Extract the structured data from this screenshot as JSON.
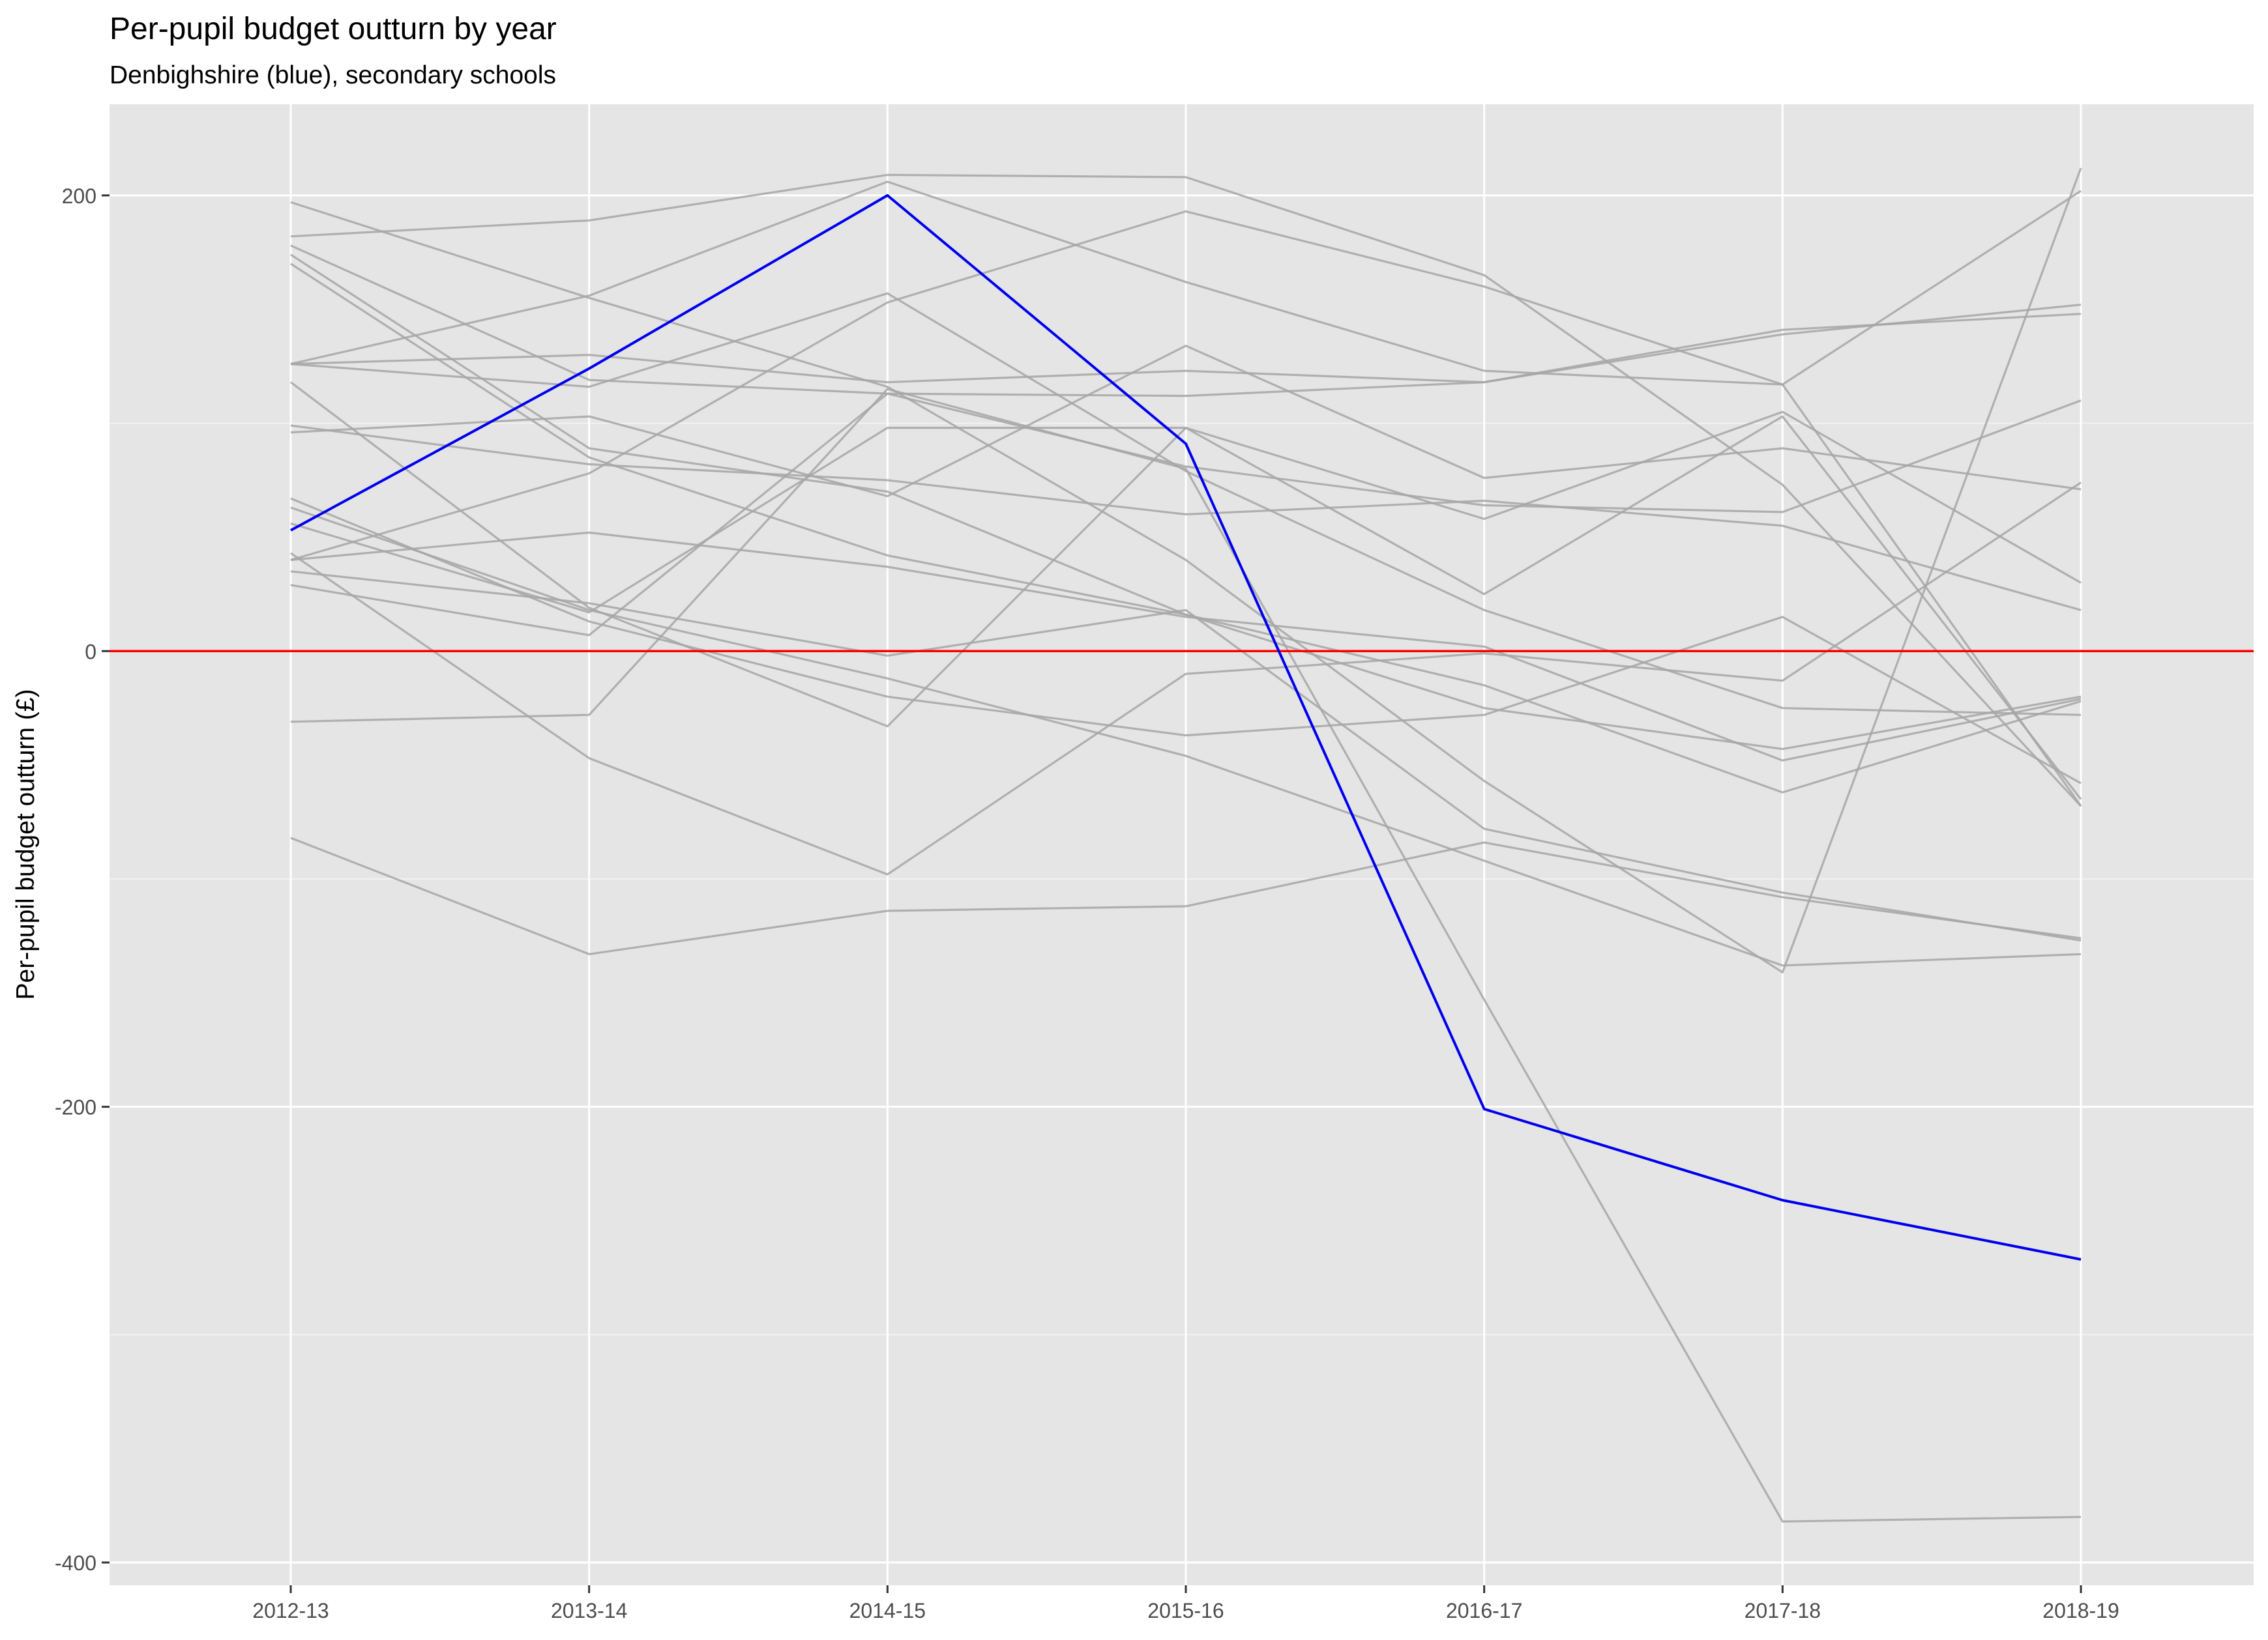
{
  "chart_data": {
    "type": "line",
    "title": "Per-pupil budget outturn by year",
    "subtitle": "Denbighshire (blue), secondary schools",
    "xlabel": "",
    "ylabel": "Per-pupil budget outturn (£)",
    "categories": [
      "2012-13",
      "2013-14",
      "2014-15",
      "2015-16",
      "2016-17",
      "2017-18",
      "2018-19"
    ],
    "ylim": [
      -410,
      240
    ],
    "yticks": [
      -400,
      -200,
      0,
      200
    ],
    "ytick_labels": [
      "-400",
      "-200",
      "0",
      "200"
    ],
    "grid": true,
    "reference_line": {
      "y": 0,
      "color": "#ff0000"
    },
    "highlight_color": "#0000ee",
    "background_color": "#e5e5e5",
    "other_color": "#a6a6a6",
    "highlight": {
      "values": [
        53,
        124,
        200,
        91,
        -201,
        -241,
        -267
      ]
    },
    "series": [
      {
        "values": [
          197,
          155,
          116,
          40,
          -57,
          -141,
          212
        ]
      },
      {
        "values": [
          182,
          189,
          209,
          208,
          165,
          73,
          -68
        ]
      },
      {
        "values": [
          178,
          119,
          113,
          112,
          118,
          139,
          152
        ]
      },
      {
        "values": [
          174,
          89,
          70,
          16,
          -25,
          -43,
          -20
        ]
      },
      {
        "values": [
          170,
          85,
          42,
          16,
          -15,
          -62,
          -22
        ]
      },
      {
        "values": [
          126,
          130,
          118,
          123,
          118,
          141,
          148
        ]
      },
      {
        "values": [
          126,
          156,
          206,
          162,
          123,
          117,
          202
        ]
      },
      {
        "values": [
          126,
          116,
          157,
          79,
          18,
          -25,
          -28
        ]
      },
      {
        "values": [
          118,
          19,
          -33,
          98,
          58,
          105,
          30
        ]
      },
      {
        "values": [
          99,
          82,
          75,
          60,
          66,
          55,
          18
        ]
      },
      {
        "values": [
          96,
          103,
          68,
          134,
          76,
          89,
          71
        ]
      },
      {
        "values": [
          67,
          13,
          -20,
          -37,
          -28,
          15,
          -58
        ]
      },
      {
        "values": [
          63,
          18,
          -12,
          -46,
          -92,
          -138,
          -133
        ]
      },
      {
        "values": [
          56,
          17,
          98,
          98,
          25,
          103,
          -65
        ]
      },
      {
        "values": [
          40,
          78,
          153,
          193,
          160,
          117,
          -68
        ]
      },
      {
        "values": [
          40,
          52,
          37,
          15,
          2,
          -48,
          -21
        ]
      },
      {
        "values": [
          35,
          21,
          -2,
          18,
          -78,
          -106,
          -127
        ]
      },
      {
        "values": [
          29,
          7,
          113,
          81,
          64,
          61,
          110
        ]
      },
      {
        "values": [
          -31,
          -28,
          115,
          80,
          -153,
          -382,
          -380
        ]
      },
      {
        "values": [
          -82,
          -133,
          -114,
          -112,
          -84,
          -108,
          -126
        ]
      },
      {
        "values": [
          43,
          -47,
          -98,
          -10,
          -1,
          -13,
          74
        ]
      }
    ]
  }
}
